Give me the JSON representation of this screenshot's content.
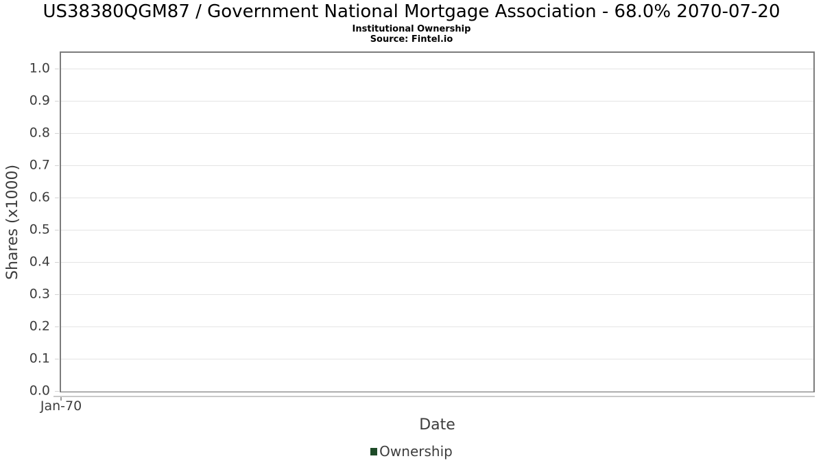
{
  "chart_data": {
    "type": "line",
    "title": "US38380QGM87 / Government National Mortgage Association - 68.0% 2070-07-20",
    "subtitle": "Institutional Ownership",
    "source": "Source: Fintel.io",
    "xlabel": "Date",
    "ylabel": "Shares (x1000)",
    "ylim": [
      0.0,
      1.05
    ],
    "grid": true,
    "y_ticks": [
      {
        "label": "0.0",
        "value": 0.0
      },
      {
        "label": "0.1",
        "value": 0.1
      },
      {
        "label": "0.2",
        "value": 0.2
      },
      {
        "label": "0.3",
        "value": 0.3
      },
      {
        "label": "0.4",
        "value": 0.4
      },
      {
        "label": "0.5",
        "value": 0.5
      },
      {
        "label": "0.6",
        "value": 0.6
      },
      {
        "label": "0.7",
        "value": 0.7
      },
      {
        "label": "0.8",
        "value": 0.8
      },
      {
        "label": "0.9",
        "value": 0.9
      },
      {
        "label": "1.0",
        "value": 1.0
      }
    ],
    "x_ticks": [
      {
        "label": "Jan-70",
        "pos": 0.0
      }
    ],
    "series": [
      {
        "name": "Ownership",
        "color": "#1e4b28",
        "x": [],
        "values": []
      }
    ],
    "legend": {
      "position": "bottom-center",
      "entries": [
        {
          "label": "Ownership",
          "color": "#1e4b28"
        }
      ]
    },
    "colors": {
      "gridline": "#e4e4e4",
      "plot_border": "#7b7b7b",
      "axis_line": "#c9c9c9",
      "tick_text": "#3d3d3d",
      "title_text": "#000000",
      "series_ownership": "#1e4b28"
    }
  }
}
